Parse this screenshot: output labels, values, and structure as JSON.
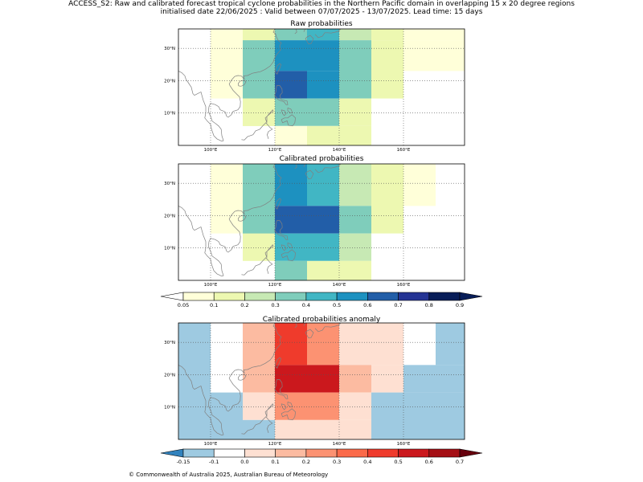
{
  "header": {
    "title": "ACCESS_S2: Raw and calibrated forecast tropical cyclone probabilities in the Northern Pacific domain in overlapping 15 x 20 degree regions",
    "subtitle": "initialised date 22/06/2025 :  Valid between 07/07/2025 - 13/07/2025. Lead time: 15 days"
  },
  "footer": {
    "copyright": "© Commonwealth of Australia 2025, Australian Bureau of Meteorology"
  },
  "map": {
    "lon_range": [
      90,
      179
    ],
    "lat_range": [
      0,
      36
    ],
    "lon_ticks": [
      "100°E",
      "120°E",
      "140°E",
      "160°E"
    ],
    "lat_ticks": [
      "10°N",
      "20°N",
      "30°N"
    ],
    "grid_lons": [
      100,
      120,
      140,
      160
    ],
    "grid_lats": [
      10,
      20,
      30
    ],
    "coastline_color": "#808080",
    "grid_color": "#555555"
  },
  "chart_data": [
    {
      "type": "heatmap",
      "title": "Raw probabilities",
      "colorscale": "prob",
      "cells": [
        {
          "lon": [
            90,
            100
          ],
          "lat": [
            0,
            36
          ],
          "value": 0.0
        },
        {
          "lon": [
            100,
            110
          ],
          "lat": [
            14.5,
            36
          ],
          "value": 0.07
        },
        {
          "lon": [
            110,
            120
          ],
          "lat": [
            6,
            36
          ],
          "value": 0.15
        },
        {
          "lon": [
            120,
            130
          ],
          "lat": [
            32.5,
            36
          ],
          "value": 0.35
        },
        {
          "lon": [
            130,
            140
          ],
          "lat": [
            32.5,
            36
          ],
          "value": 0.45
        },
        {
          "lon": [
            140,
            150
          ],
          "lat": [
            32.5,
            36
          ],
          "value": 0.25
        },
        {
          "lon": [
            150,
            160
          ],
          "lat": [
            32.5,
            36
          ],
          "value": 0.15
        },
        {
          "lon": [
            160,
            179
          ],
          "lat": [
            32.5,
            36
          ],
          "value": 0.07
        },
        {
          "lon": [
            110,
            120
          ],
          "lat": [
            14.5,
            32.5
          ],
          "value": 0.35
        },
        {
          "lon": [
            120,
            130
          ],
          "lat": [
            23,
            32.5
          ],
          "value": 0.55
        },
        {
          "lon": [
            130,
            140
          ],
          "lat": [
            23,
            32.5
          ],
          "value": 0.55
        },
        {
          "lon": [
            140,
            150
          ],
          "lat": [
            14.5,
            32.5
          ],
          "value": 0.35
        },
        {
          "lon": [
            150,
            160
          ],
          "lat": [
            14.5,
            32.5
          ],
          "value": 0.15
        },
        {
          "lon": [
            160,
            179
          ],
          "lat": [
            23,
            32.5
          ],
          "value": 0.07
        },
        {
          "lon": [
            120,
            130
          ],
          "lat": [
            14.5,
            23
          ],
          "value": 0.65
        },
        {
          "lon": [
            130,
            140
          ],
          "lat": [
            14.5,
            23
          ],
          "value": 0.55
        },
        {
          "lon": [
            110,
            120
          ],
          "lat": [
            6,
            14.5
          ],
          "value": 0.15
        },
        {
          "lon": [
            120,
            140
          ],
          "lat": [
            6,
            14.5
          ],
          "value": 0.35
        },
        {
          "lon": [
            140,
            150
          ],
          "lat": [
            6,
            14.5
          ],
          "value": 0.15
        },
        {
          "lon": [
            120,
            130
          ],
          "lat": [
            0,
            6
          ],
          "value": 0.07
        },
        {
          "lon": [
            130,
            150
          ],
          "lat": [
            0,
            6
          ],
          "value": 0.15
        }
      ]
    },
    {
      "type": "heatmap",
      "title": "Calibrated probabilities",
      "colorscale": "prob",
      "cells": [
        {
          "lon": [
            100,
            110
          ],
          "lat": [
            14.5,
            36
          ],
          "value": 0.07
        },
        {
          "lon": [
            110,
            120
          ],
          "lat": [
            6,
            36
          ],
          "value": 0.15
        },
        {
          "lon": [
            110,
            120
          ],
          "lat": [
            14.5,
            36
          ],
          "value": 0.35
        },
        {
          "lon": [
            120,
            130
          ],
          "lat": [
            23,
            36
          ],
          "value": 0.55
        },
        {
          "lon": [
            130,
            140
          ],
          "lat": [
            23,
            36
          ],
          "value": 0.45
        },
        {
          "lon": [
            140,
            150
          ],
          "lat": [
            23,
            36
          ],
          "value": 0.25
        },
        {
          "lon": [
            150,
            160
          ],
          "lat": [
            14.5,
            36
          ],
          "value": 0.15
        },
        {
          "lon": [
            160,
            170
          ],
          "lat": [
            23,
            36
          ],
          "value": 0.07
        },
        {
          "lon": [
            120,
            140
          ],
          "lat": [
            14.5,
            23
          ],
          "value": 0.65
        },
        {
          "lon": [
            140,
            150
          ],
          "lat": [
            14.5,
            23
          ],
          "value": 0.35
        },
        {
          "lon": [
            120,
            140
          ],
          "lat": [
            6,
            14.5
          ],
          "value": 0.45
        },
        {
          "lon": [
            140,
            150
          ],
          "lat": [
            6,
            14.5
          ],
          "value": 0.25
        },
        {
          "lon": [
            120,
            130
          ],
          "lat": [
            0,
            6
          ],
          "value": 0.35
        },
        {
          "lon": [
            130,
            150
          ],
          "lat": [
            0,
            6
          ],
          "value": 0.15
        }
      ]
    },
    {
      "type": "heatmap",
      "title": "Calibrated probabilities anomaly",
      "colorscale": "anom",
      "cells": [
        {
          "lon": [
            90,
            100
          ],
          "lat": [
            0,
            36
          ],
          "value": -0.15
        },
        {
          "lon": [
            100,
            110
          ],
          "lat": [
            14.5,
            36
          ],
          "value": -0.08
        },
        {
          "lon": [
            100,
            110
          ],
          "lat": [
            0,
            14.5
          ],
          "value": -0.15
        },
        {
          "lon": [
            110,
            120
          ],
          "lat": [
            14.5,
            36
          ],
          "value": 0.15
        },
        {
          "lon": [
            110,
            120
          ],
          "lat": [
            6,
            14.5
          ],
          "value": 0.0
        },
        {
          "lon": [
            110,
            120
          ],
          "lat": [
            0,
            6
          ],
          "value": -0.15
        },
        {
          "lon": [
            120,
            130
          ],
          "lat": [
            23,
            36
          ],
          "value": 0.45
        },
        {
          "lon": [
            130,
            140
          ],
          "lat": [
            23,
            36
          ],
          "value": 0.25
        },
        {
          "lon": [
            140,
            150
          ],
          "lat": [
            23,
            36
          ],
          "value": 0.05
        },
        {
          "lon": [
            150,
            160
          ],
          "lat": [
            23,
            36
          ],
          "value": 0.0
        },
        {
          "lon": [
            160,
            170
          ],
          "lat": [
            23,
            36
          ],
          "value": -0.08
        },
        {
          "lon": [
            170,
            179
          ],
          "lat": [
            23,
            36
          ],
          "value": -0.15
        },
        {
          "lon": [
            120,
            140
          ],
          "lat": [
            14.5,
            23
          ],
          "value": 0.55
        },
        {
          "lon": [
            140,
            150
          ],
          "lat": [
            14.5,
            23
          ],
          "value": 0.15
        },
        {
          "lon": [
            150,
            160
          ],
          "lat": [
            14.5,
            23
          ],
          "value": 0.0
        },
        {
          "lon": [
            160,
            179
          ],
          "lat": [
            14.5,
            23
          ],
          "value": -0.15
        },
        {
          "lon": [
            120,
            140
          ],
          "lat": [
            6,
            14.5
          ],
          "value": 0.25
        },
        {
          "lon": [
            140,
            150
          ],
          "lat": [
            6,
            14.5
          ],
          "value": 0.05
        },
        {
          "lon": [
            150,
            179
          ],
          "lat": [
            0,
            14.5
          ],
          "value": -0.15
        },
        {
          "lon": [
            120,
            130
          ],
          "lat": [
            0,
            6
          ],
          "value": 0.05
        },
        {
          "lon": [
            130,
            140
          ],
          "lat": [
            0,
            6
          ],
          "value": 0.05
        },
        {
          "lon": [
            140,
            150
          ],
          "lat": [
            0,
            6
          ],
          "value": 0.0
        }
      ]
    }
  ],
  "colorbars": {
    "prob": {
      "labels": [
        "0.05",
        "0.1",
        "0.2",
        "0.3",
        "0.4",
        "0.5",
        "0.6",
        "0.7",
        "0.8",
        "0.9"
      ],
      "bounds": [
        0.05,
        0.1,
        0.2,
        0.3,
        0.4,
        0.5,
        0.6,
        0.7,
        0.8,
        0.9
      ],
      "colors": [
        "#ffffd9",
        "#edf8b1",
        "#c7e9b4",
        "#7fcdbb",
        "#41b6c4",
        "#1d91c0",
        "#225ea8",
        "#253494",
        "#081d58"
      ],
      "under": "#ffffff",
      "over": "#081d58"
    },
    "anom": {
      "labels": [
        "-0.15",
        "-0.1",
        "0.0",
        "0.1",
        "0.2",
        "0.3",
        "0.4",
        "0.5",
        "0.6",
        "0.7"
      ],
      "bounds": [
        -0.15,
        -0.1,
        0.0,
        0.1,
        0.2,
        0.3,
        0.4,
        0.5,
        0.6,
        0.7
      ],
      "colors": [
        "#9ecae1",
        "#ffffff",
        "#fee0d2",
        "#fcbba1",
        "#fc9272",
        "#fb6a4a",
        "#ef3b2c",
        "#cb181d",
        "#a50f15"
      ],
      "under": "#3182bd",
      "over": "#67000d"
    }
  }
}
